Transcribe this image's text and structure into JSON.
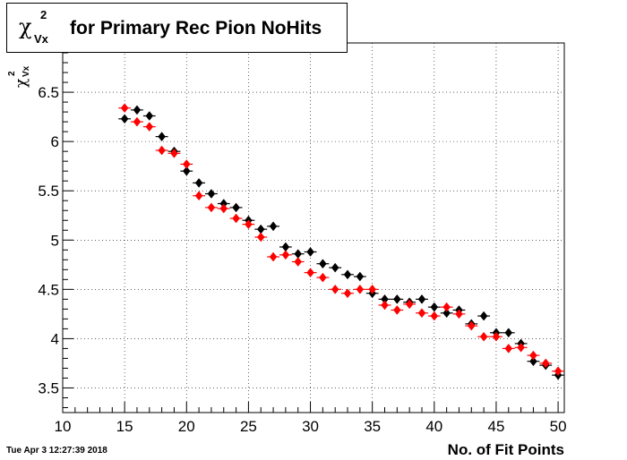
{
  "title": {
    "symbol": "χ",
    "superscript": "2",
    "subscript": "Vx",
    "text": "for Primary Rec Pion NoHits"
  },
  "axes": {
    "x_label": "No. of Fit Points",
    "y_label_symbol": "χ",
    "y_label_superscript": "2",
    "y_label_subscript": "Vx"
  },
  "timestamp": "Tue Apr  3 12:27:39 2018",
  "colors": {
    "series_black": "#000000",
    "series_red": "#ff0000",
    "grid": "#000000",
    "background": "#ffffff"
  },
  "chart_data": {
    "type": "scatter",
    "xlabel": "No. of Fit Points",
    "xlim": [
      10,
      50.5
    ],
    "ylim": [
      3.25,
      7.0
    ],
    "x_ticks": [
      10,
      15,
      20,
      25,
      30,
      35,
      40,
      45,
      50
    ],
    "y_ticks": [
      3.5,
      4,
      4.5,
      5,
      5.5,
      6,
      6.5
    ],
    "grid": true,
    "marker": "diamond",
    "series": [
      {
        "color": "#000000",
        "x": [
          15,
          16,
          17,
          18,
          19,
          20,
          21,
          22,
          23,
          24,
          25,
          26,
          27,
          28,
          29,
          30,
          31,
          32,
          33,
          34,
          35,
          36,
          37,
          38,
          39,
          40,
          41,
          42,
          43,
          44,
          45,
          46,
          47,
          48,
          49,
          50
        ],
        "y": [
          6.23,
          6.32,
          6.26,
          6.05,
          5.9,
          5.7,
          5.58,
          5.47,
          5.37,
          5.33,
          5.2,
          5.11,
          5.14,
          4.93,
          4.86,
          4.88,
          4.76,
          4.72,
          4.65,
          4.63,
          4.46,
          4.4,
          4.4,
          4.37,
          4.4,
          4.32,
          4.26,
          4.29,
          4.15,
          4.23,
          4.06,
          4.06,
          3.95,
          3.77,
          3.73,
          3.63
        ]
      },
      {
        "color": "#ff0000",
        "x": [
          15,
          16,
          17,
          18,
          19,
          20,
          21,
          22,
          23,
          24,
          25,
          26,
          27,
          28,
          29,
          30,
          31,
          32,
          33,
          34,
          35,
          36,
          37,
          38,
          39,
          40,
          41,
          42,
          43,
          44,
          45,
          46,
          47,
          48,
          49,
          50
        ],
        "y": [
          6.34,
          6.2,
          6.15,
          5.91,
          5.88,
          5.77,
          5.45,
          5.33,
          5.32,
          5.22,
          5.16,
          5.03,
          4.83,
          4.85,
          4.78,
          4.67,
          4.62,
          4.5,
          4.46,
          4.5,
          4.5,
          4.34,
          4.29,
          4.35,
          4.26,
          4.23,
          4.32,
          4.25,
          4.13,
          4.02,
          4.02,
          3.9,
          3.91,
          3.83,
          3.75,
          3.67
        ]
      }
    ]
  }
}
